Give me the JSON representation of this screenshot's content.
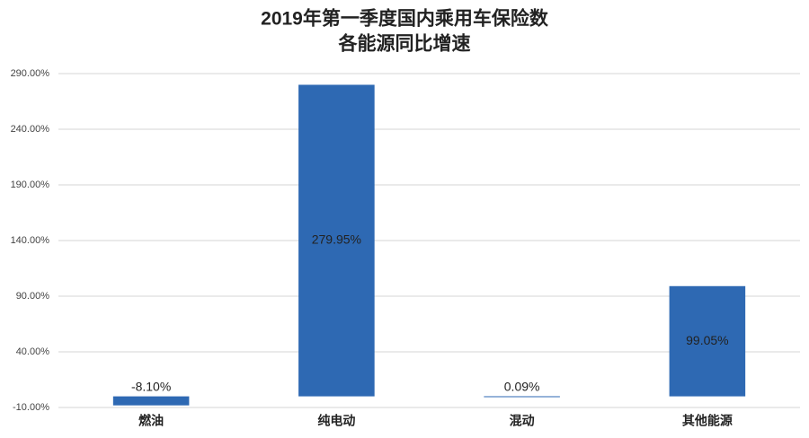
{
  "chart_data": {
    "type": "bar",
    "title": "2019年第一季度国内乘用车保险数",
    "subtitle": "各能源同比增速",
    "categories": [
      "燃油",
      "纯电动",
      "混动",
      "其他能源"
    ],
    "values": [
      -8.1,
      279.95,
      0.09,
      99.05
    ],
    "value_labels": [
      "-8.10%",
      "279.95%",
      "0.09%",
      "99.05%"
    ],
    "color": "#2e69b3",
    "ylim": [
      -10,
      290
    ],
    "yticks": [
      {
        "value": -10,
        "label": "-10.00%"
      },
      {
        "value": 40,
        "label": "40.00%"
      },
      {
        "value": 90,
        "label": "90.00%"
      },
      {
        "value": 140,
        "label": "140.00%"
      },
      {
        "value": 190,
        "label": "190.00%"
      },
      {
        "value": 240,
        "label": "240.00%"
      },
      {
        "value": 290,
        "label": "290.00%"
      }
    ],
    "grid": true
  }
}
